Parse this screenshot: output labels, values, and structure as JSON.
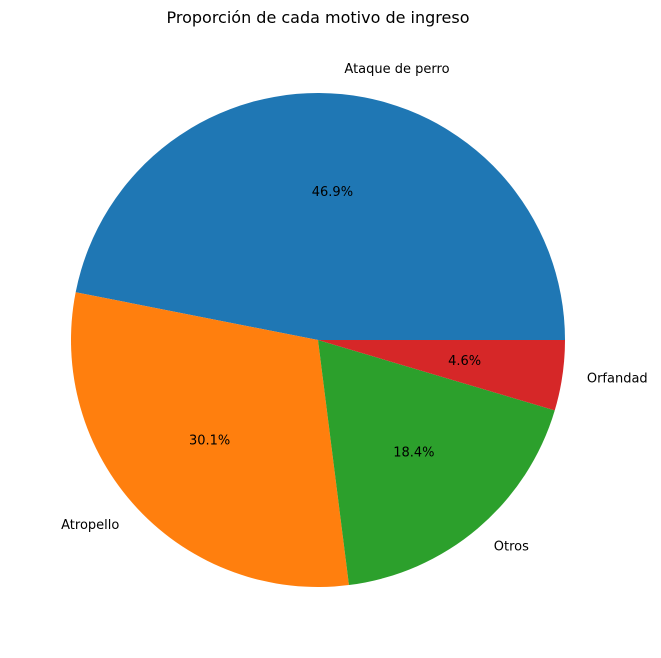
{
  "chart_data": {
    "type": "pie",
    "title": "Proporción de cada motivo de ingreso",
    "categories": [
      "Ataque de perro",
      "Atropello",
      "Otros",
      "Orfandad"
    ],
    "values": [
      46.9,
      30.1,
      18.4,
      4.6
    ],
    "percent_labels": [
      "46.9%",
      "30.1%",
      "18.4%",
      "4.6%"
    ],
    "colors": [
      "#1f77b4",
      "#ff7f0e",
      "#2ca02c",
      "#d62728"
    ],
    "start_angle_deg": 0,
    "direction": "counterclockwise",
    "legend": "none"
  }
}
